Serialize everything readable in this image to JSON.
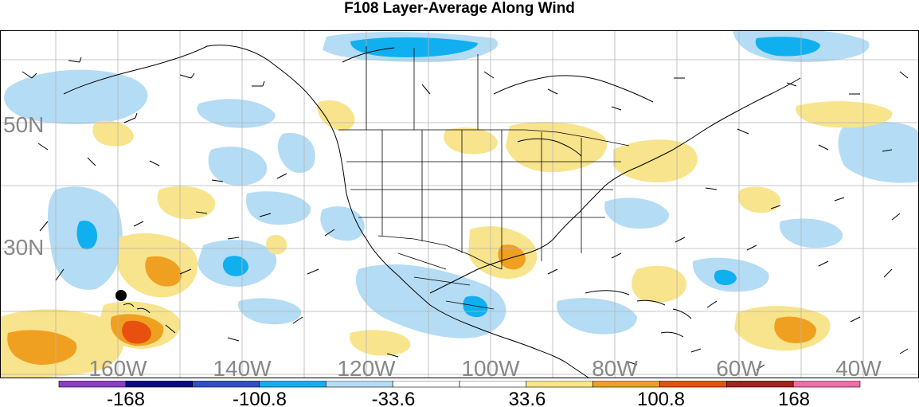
{
  "title": "F108 Layer-Average Along Wind",
  "map": {
    "region": "North America and adjacent oceans",
    "lat_labels": [
      "50N",
      "30N"
    ],
    "lon_labels": [
      "160W",
      "140W",
      "120W",
      "100W",
      "80W",
      "60W",
      "40W"
    ],
    "gridlines": true,
    "wind_barbs": true,
    "coastlines": true,
    "political_boundaries": true,
    "point_marker": "Hawaii",
    "anomaly_features": [
      {
        "region": "Gulf of Alaska",
        "sign": "negative",
        "level": "-33.6 to -100.8"
      },
      {
        "region": "Central Pacific near 30N",
        "sign": "negative",
        "level": "-33.6 to -100.8"
      },
      {
        "region": "Subtropical Pacific near 30N 145W",
        "sign": "positive",
        "level": "33.6 to 100.8"
      },
      {
        "region": "Southwest of Hawaii",
        "sign": "positive",
        "level": "100.8 to 168"
      },
      {
        "region": "Great Lakes and Northeast US",
        "sign": "positive",
        "level": "33.6 to 100.8"
      },
      {
        "region": "Texas and Gulf Coast",
        "sign": "positive",
        "level": "33.6 to 100.8"
      },
      {
        "region": "Mexico and Central America",
        "sign": "negative",
        "level": "-33.6 to -100.8"
      },
      {
        "region": "Western Atlantic near 30N 55W",
        "sign": "negative",
        "level": "-33.6 to -100.8"
      },
      {
        "region": "Central Atlantic near 20N 45W",
        "sign": "positive",
        "level": "100.8 to 168"
      }
    ]
  },
  "colorbar": {
    "colors": [
      "#8c3fc0",
      "#0a0a80",
      "#3050c8",
      "#10b0f0",
      "#b4dcf4",
      "#ffffff",
      "#ffffff",
      "#f8e48c",
      "#f0a020",
      "#e85010",
      "#a82020",
      "#f06ea8"
    ],
    "labels": [
      "-168",
      "-100.8",
      "-33.6",
      "33.6",
      "100.8",
      "168"
    ]
  }
}
